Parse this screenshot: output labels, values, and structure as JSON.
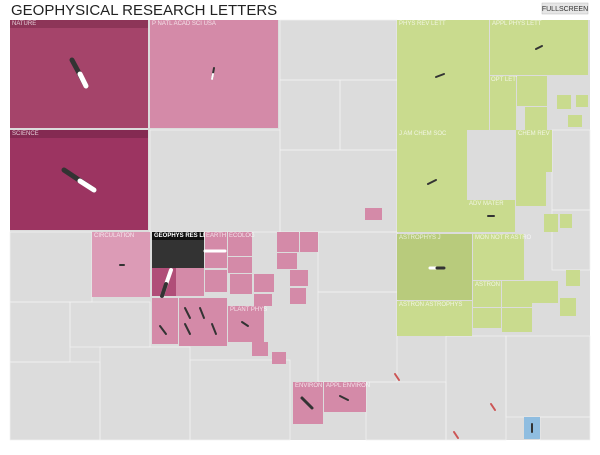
{
  "header": {
    "title": "GEOPHYSICAL RESEARCH LETTERS",
    "button": "FULLSCREEN"
  },
  "nodes": [
    {
      "label": "NATURE"
    },
    {
      "label": "SCIENCE"
    },
    {
      "label": "P NATL ACAD SCI USA"
    },
    {
      "label": "PHYS REV LETT"
    },
    {
      "label": "APPL PHYS LETT"
    },
    {
      "label": "OPT LETT"
    },
    {
      "label": "J AM CHEM SOC"
    },
    {
      "label": "CHEM REV"
    },
    {
      "label": "ADV MATER"
    },
    {
      "label": "ASTROPHYS J"
    },
    {
      "label": "MON NOT R ASTRO"
    },
    {
      "label": "ASTRON J"
    },
    {
      "label": "ASTRON ASTROPHYS"
    },
    {
      "label": "CIRCULATION"
    },
    {
      "label": "GEOPHYS RES LET"
    },
    {
      "label": "EARTH"
    },
    {
      "label": "ECOLOG"
    },
    {
      "label": "PLANT PHYS"
    },
    {
      "label": "ENVIRON"
    },
    {
      "label": "APPL ENVIRON"
    }
  ]
}
